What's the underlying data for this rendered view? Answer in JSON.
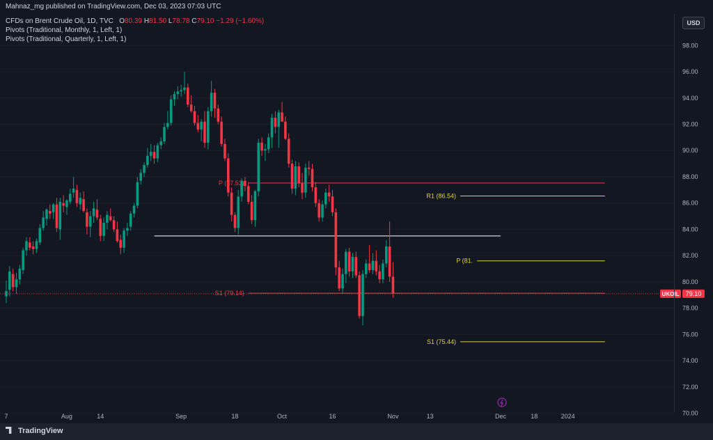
{
  "publisher_line": "Mahnaz_mg published on TradingView.com, Dec 03, 2023 07:03 UTC",
  "legend": {
    "symbol": "CFDs on Brent Crude Oil, 1D, TVC",
    "o_label": "O",
    "o": "80.39",
    "h_label": "H",
    "h": "81.50",
    "l_label": "L",
    "l": "78.78",
    "c_label": "C",
    "c": "79.10",
    "change": "−1.29 (−1.60%)",
    "pivot_monthly": "Pivots (Traditional, Monthly, 1, Left, 1)",
    "pivot_quarterly": "Pivots (Traditional, Quarterly, 1, Left, 1)"
  },
  "currency_button": "USD",
  "brand": "TradingView",
  "colors": {
    "up": "#089981",
    "down": "#f23645",
    "background": "#131722",
    "pivot_quarterly": "#f23645",
    "pivot_monthly": "#e0d341",
    "hline": "#d1d4dc"
  },
  "chart_data": {
    "type": "candlestick",
    "symbol": "UKOIL",
    "ylim": [
      69.5,
      99.5
    ],
    "y_ticks": [
      "98.00",
      "96.00",
      "94.00",
      "92.00",
      "90.00",
      "88.00",
      "86.00",
      "84.00",
      "82.00",
      "80.00",
      "78.00",
      "76.00",
      "74.00",
      "72.00",
      "70.00"
    ],
    "x_ticks": [
      {
        "label": "7",
        "bar": 0
      },
      {
        "label": "Aug",
        "bar": 18
      },
      {
        "label": "14",
        "bar": 28
      },
      {
        "label": "Sep",
        "bar": 52
      },
      {
        "label": "18",
        "bar": 68
      },
      {
        "label": "Oct",
        "bar": 82
      },
      {
        "label": "16",
        "bar": 97
      },
      {
        "label": "Nov",
        "bar": 115
      },
      {
        "label": "13",
        "bar": 126
      },
      {
        "label": "Dec",
        "bar": 147
      },
      {
        "label": "18",
        "bar": 157
      },
      {
        "label": "2024",
        "bar": 167
      }
    ],
    "last_price_label": "79.10",
    "last_price_symbol": "UKOIL",
    "last_price": 79.1,
    "hline": {
      "value": 83.5,
      "from_bar": 44,
      "to_bar": 147
    },
    "pivots": [
      {
        "label": "P (87.53)",
        "value": 87.53,
        "from_bar": 72,
        "to_bar": 178,
        "color": "quarterly"
      },
      {
        "label": "S1 (79.14)",
        "value": 79.14,
        "from_bar": 72,
        "to_bar": 178,
        "color": "quarterly"
      },
      {
        "label": "R1 (86.54)",
        "value": 86.54,
        "from_bar": 135,
        "to_bar": 178,
        "color": "monthly"
      },
      {
        "label": "P (81.",
        "value": 81.6,
        "from_bar": 140,
        "to_bar": 178,
        "color": "monthly"
      },
      {
        "label": "S1 (75.44)",
        "value": 75.44,
        "from_bar": 135,
        "to_bar": 178,
        "color": "monthly"
      }
    ],
    "candles": [
      [
        78.9,
        80.1,
        78.4,
        79.3
      ],
      [
        79.4,
        81.2,
        78.9,
        80.8
      ],
      [
        80.6,
        81.0,
        79.3,
        79.6
      ],
      [
        79.6,
        80.7,
        79.1,
        80.2
      ],
      [
        80.2,
        81.3,
        79.8,
        81.0
      ],
      [
        80.9,
        82.6,
        80.6,
        82.4
      ],
      [
        82.4,
        83.4,
        82.0,
        83.1
      ],
      [
        83.0,
        83.4,
        82.4,
        82.6
      ],
      [
        82.7,
        83.1,
        82.1,
        82.5
      ],
      [
        82.5,
        83.3,
        82.2,
        83.1
      ],
      [
        83.0,
        84.4,
        82.8,
        84.1
      ],
      [
        84.1,
        85.4,
        83.9,
        84.9
      ],
      [
        84.8,
        85.6,
        84.3,
        85.5
      ],
      [
        85.4,
        85.9,
        84.8,
        85.2
      ],
      [
        85.3,
        86.0,
        84.8,
        85.9
      ],
      [
        85.9,
        86.4,
        83.8,
        84.1
      ],
      [
        84.0,
        86.4,
        83.2,
        86.1
      ],
      [
        86.0,
        86.6,
        85.3,
        85.8
      ],
      [
        85.7,
        86.3,
        85.1,
        86.2
      ],
      [
        86.1,
        87.1,
        85.9,
        86.7
      ],
      [
        86.8,
        88.0,
        86.4,
        87.1
      ],
      [
        87.0,
        87.4,
        85.7,
        86.0
      ],
      [
        85.9,
        86.8,
        85.5,
        86.4
      ],
      [
        86.3,
        86.9,
        85.3,
        85.4
      ],
      [
        85.3,
        85.6,
        83.6,
        84.2
      ],
      [
        84.2,
        85.4,
        83.4,
        85.0
      ],
      [
        85.0,
        86.1,
        84.5,
        85.6
      ],
      [
        85.5,
        86.3,
        84.7,
        84.9
      ],
      [
        84.8,
        85.1,
        83.1,
        83.5
      ],
      [
        83.5,
        84.9,
        83.1,
        84.5
      ],
      [
        84.5,
        85.4,
        84.0,
        85.1
      ],
      [
        85.0,
        85.6,
        84.6,
        84.7
      ],
      [
        84.7,
        85.0,
        83.8,
        84.0
      ],
      [
        84.0,
        84.6,
        83.0,
        83.1
      ],
      [
        83.2,
        83.6,
        82.1,
        82.6
      ],
      [
        82.6,
        84.1,
        82.2,
        83.9
      ],
      [
        83.9,
        84.5,
        83.5,
        84.1
      ],
      [
        84.2,
        85.4,
        83.9,
        85.2
      ],
      [
        85.2,
        86.0,
        84.9,
        85.8
      ],
      [
        85.8,
        88.0,
        85.6,
        87.6
      ],
      [
        87.7,
        88.6,
        87.4,
        88.3
      ],
      [
        88.3,
        89.1,
        88.0,
        88.9
      ],
      [
        88.9,
        90.2,
        88.7,
        89.6
      ],
      [
        89.6,
        90.5,
        89.2,
        89.9
      ],
      [
        89.9,
        90.4,
        89.0,
        89.4
      ],
      [
        89.4,
        90.6,
        89.1,
        90.4
      ],
      [
        90.4,
        91.0,
        90.1,
        90.7
      ],
      [
        90.7,
        92.1,
        90.5,
        91.8
      ],
      [
        91.8,
        93.0,
        91.6,
        92.1
      ],
      [
        92.1,
        94.2,
        91.9,
        93.9
      ],
      [
        93.9,
        94.5,
        93.4,
        94.3
      ],
      [
        94.3,
        94.9,
        93.9,
        94.5
      ],
      [
        94.5,
        95.0,
        94.1,
        94.6
      ],
      [
        94.6,
        96.0,
        94.3,
        94.8
      ],
      [
        94.8,
        95.1,
        93.3,
        93.5
      ],
      [
        93.5,
        94.2,
        92.9,
        93.0
      ],
      [
        93.0,
        93.4,
        91.9,
        92.1
      ],
      [
        92.1,
        92.7,
        91.4,
        91.6
      ],
      [
        91.6,
        92.4,
        90.7,
        92.2
      ],
      [
        92.2,
        93.0,
        90.2,
        90.6
      ],
      [
        90.6,
        93.3,
        90.1,
        93.0
      ],
      [
        93.0,
        95.3,
        92.6,
        94.4
      ],
      [
        94.4,
        94.7,
        92.5,
        93.2
      ],
      [
        93.2,
        93.5,
        92.0,
        92.2
      ],
      [
        92.2,
        92.6,
        90.3,
        90.5
      ],
      [
        90.5,
        90.9,
        89.2,
        89.4
      ],
      [
        89.4,
        89.8,
        86.5,
        86.8
      ],
      [
        86.8,
        87.2,
        84.6,
        85.1
      ],
      [
        85.1,
        85.3,
        83.8,
        84.1
      ],
      [
        84.1,
        87.0,
        83.6,
        86.5
      ],
      [
        86.5,
        87.9,
        86.1,
        87.7
      ],
      [
        87.7,
        88.0,
        86.9,
        87.3
      ],
      [
        87.3,
        87.6,
        85.9,
        86.1
      ],
      [
        86.1,
        86.6,
        84.4,
        84.7
      ],
      [
        84.7,
        87.0,
        84.2,
        86.9
      ],
      [
        86.9,
        90.9,
        86.5,
        90.6
      ],
      [
        90.6,
        91.0,
        89.6,
        90.0
      ],
      [
        90.0,
        90.5,
        89.2,
        90.1
      ],
      [
        90.1,
        91.3,
        89.8,
        91.0
      ],
      [
        91.0,
        92.8,
        90.2,
        92.5
      ],
      [
        92.5,
        93.0,
        91.3,
        91.8
      ],
      [
        91.8,
        93.1,
        90.2,
        92.9
      ],
      [
        92.9,
        93.7,
        92.3,
        92.2
      ],
      [
        92.2,
        92.6,
        90.8,
        90.9
      ],
      [
        90.9,
        91.3,
        88.7,
        89.0
      ],
      [
        89.0,
        89.3,
        86.7,
        87.1
      ],
      [
        87.1,
        89.2,
        86.6,
        88.8
      ],
      [
        88.8,
        89.1,
        87.2,
        87.5
      ],
      [
        87.5,
        88.3,
        86.3,
        86.8
      ],
      [
        86.8,
        89.0,
        86.4,
        88.7
      ],
      [
        88.7,
        89.2,
        88.1,
        88.6
      ],
      [
        88.6,
        89.0,
        86.9,
        87.2
      ],
      [
        87.2,
        87.6,
        85.7,
        86.0
      ],
      [
        86.0,
        86.3,
        84.6,
        84.9
      ],
      [
        84.9,
        86.2,
        84.6,
        85.9
      ],
      [
        85.9,
        87.1,
        85.6,
        86.8
      ],
      [
        86.8,
        87.4,
        86.1,
        86.5
      ],
      [
        86.5,
        87.0,
        85.0,
        85.3
      ],
      [
        85.3,
        85.6,
        80.5,
        81.1
      ],
      [
        81.1,
        81.6,
        79.3,
        79.5
      ],
      [
        79.5,
        81.0,
        79.1,
        80.6
      ],
      [
        80.6,
        82.5,
        79.9,
        82.3
      ],
      [
        82.3,
        82.6,
        80.4,
        80.8
      ],
      [
        80.8,
        82.2,
        80.3,
        81.9
      ],
      [
        81.9,
        82.3,
        80.3,
        80.5
      ],
      [
        80.5,
        80.8,
        77.2,
        77.4
      ],
      [
        77.4,
        80.9,
        76.7,
        80.6
      ],
      [
        80.6,
        81.7,
        80.3,
        81.4
      ],
      [
        81.4,
        82.8,
        80.7,
        80.9
      ],
      [
        80.9,
        82.2,
        80.6,
        81.6
      ],
      [
        81.6,
        82.4,
        80.5,
        80.8
      ],
      [
        80.8,
        81.3,
        79.9,
        80.2
      ],
      [
        80.2,
        81.7,
        79.9,
        81.4
      ],
      [
        81.4,
        83.2,
        81.1,
        82.7
      ],
      [
        82.7,
        84.6,
        80.0,
        80.4
      ],
      [
        80.4,
        81.5,
        78.8,
        79.1
      ]
    ]
  }
}
